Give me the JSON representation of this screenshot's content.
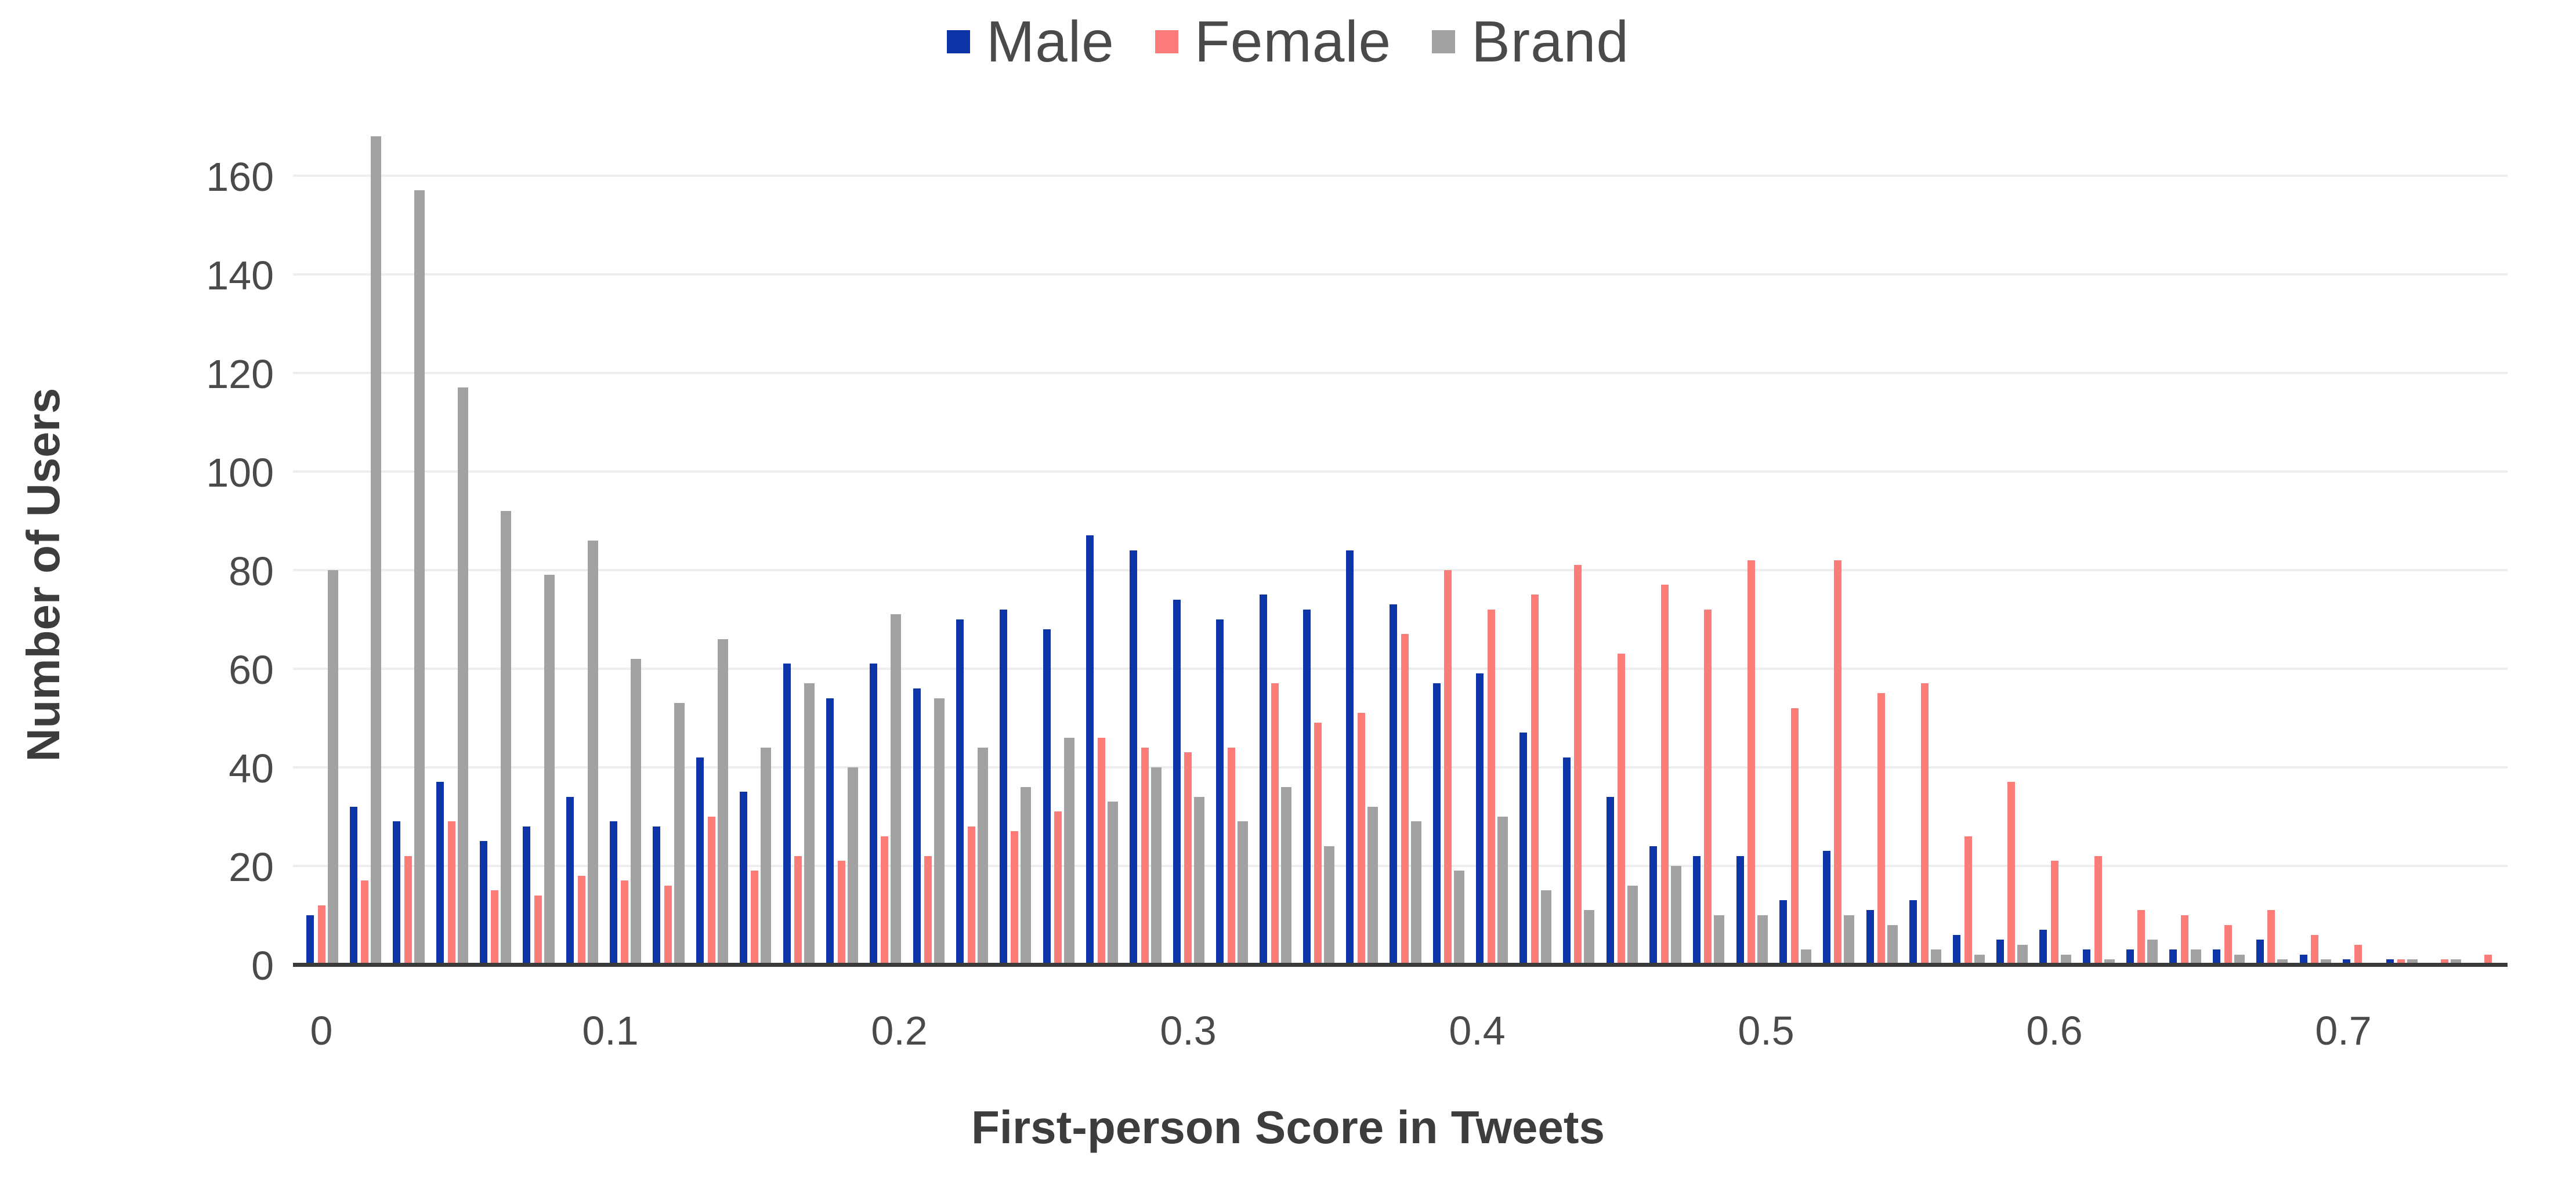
{
  "legend": {
    "items": [
      {
        "label": "Male",
        "color": "#0d35a8"
      },
      {
        "label": "Female",
        "color": "#fb7c79"
      },
      {
        "label": "Brand",
        "color": "#a2a2a2"
      }
    ]
  },
  "axes": {
    "x_title": "First-person Score in Tweets",
    "y_title": "Number of Users",
    "x_tick_labels": [
      "0",
      "0.1",
      "0.2",
      "0.3",
      "0.4",
      "0.5",
      "0.6",
      "0.7"
    ],
    "y_tick_labels": [
      "0",
      "20",
      "40",
      "60",
      "80",
      "100",
      "120",
      "140",
      "160"
    ]
  },
  "chart_data": {
    "type": "bar",
    "title": "",
    "xlabel": "First-person Score in Tweets",
    "ylabel": "Number of Users",
    "legend_position": "top",
    "grid": true,
    "bin_width": 0.015,
    "xlim": [
      -0.01,
      0.765
    ],
    "ylim": [
      0,
      170
    ],
    "x_ticks": [
      0,
      0.1,
      0.2,
      0.3,
      0.4,
      0.5,
      0.6,
      0.7
    ],
    "y_ticks": [
      0,
      20,
      40,
      60,
      80,
      100,
      120,
      140,
      160
    ],
    "x": [
      0,
      0.015,
      0.03,
      0.045,
      0.06,
      0.075,
      0.09,
      0.105,
      0.12,
      0.135,
      0.15,
      0.165,
      0.18,
      0.195,
      0.21,
      0.225,
      0.24,
      0.255,
      0.27,
      0.285,
      0.3,
      0.315,
      0.33,
      0.345,
      0.36,
      0.375,
      0.39,
      0.405,
      0.42,
      0.435,
      0.45,
      0.465,
      0.48,
      0.495,
      0.51,
      0.525,
      0.54,
      0.555,
      0.57,
      0.585,
      0.6,
      0.615,
      0.63,
      0.645,
      0.66,
      0.675,
      0.69,
      0.705,
      0.72,
      0.735,
      0.75
    ],
    "series": [
      {
        "name": "Male",
        "color": "#0d35a8",
        "values": [
          10,
          32,
          29,
          37,
          25,
          28,
          34,
          29,
          28,
          42,
          35,
          61,
          54,
          61,
          56,
          70,
          72,
          68,
          87,
          84,
          74,
          70,
          75,
          72,
          84,
          73,
          57,
          59,
          47,
          42,
          34,
          24,
          22,
          22,
          13,
          23,
          11,
          13,
          6,
          5,
          7,
          3,
          3,
          3,
          3,
          5,
          2,
          1,
          1,
          0,
          0
        ]
      },
      {
        "name": "Female",
        "color": "#fb7c79",
        "values": [
          12,
          17,
          22,
          29,
          15,
          14,
          18,
          17,
          16,
          30,
          19,
          22,
          21,
          26,
          22,
          28,
          27,
          31,
          46,
          44,
          43,
          44,
          57,
          49,
          51,
          67,
          80,
          72,
          75,
          81,
          63,
          77,
          72,
          82,
          52,
          82,
          55,
          57,
          26,
          37,
          21,
          22,
          11,
          10,
          8,
          11,
          6,
          4,
          1,
          1,
          2
        ]
      },
      {
        "name": "Brand",
        "color": "#a2a2a2",
        "values": [
          80,
          168,
          157,
          117,
          92,
          79,
          86,
          62,
          53,
          66,
          44,
          57,
          40,
          71,
          54,
          44,
          36,
          46,
          33,
          40,
          34,
          29,
          36,
          24,
          32,
          29,
          19,
          30,
          15,
          11,
          16,
          20,
          10,
          10,
          3,
          10,
          8,
          3,
          2,
          4,
          2,
          1,
          5,
          3,
          2,
          1,
          1,
          0,
          1,
          1,
          0
        ]
      }
    ]
  }
}
